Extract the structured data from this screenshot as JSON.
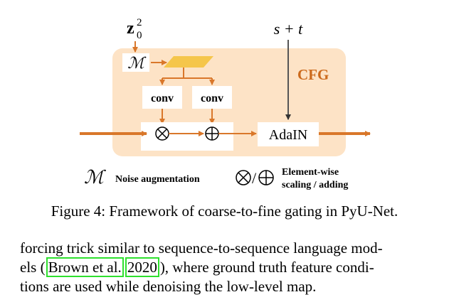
{
  "figure": {
    "input_label": "z",
    "input_sup": "2",
    "input_sub": "0",
    "top_right_label": "s + t",
    "noise_symbol": "ℳ",
    "conv_left": "conv",
    "conv_right": "conv",
    "cfg_label": "CFG",
    "adain_label": "AdaIN",
    "legend_noise": "Noise augmentation",
    "legend_ops_line1": "Element-wise",
    "legend_ops_line2": "scaling / adding",
    "legend_slash": "/",
    "colors": {
      "panel_bg": "#fde3c6",
      "arrow": "#d9772a",
      "trapezoid": "#f5c64b",
      "cfg_text": "#cc6a1c"
    }
  },
  "caption": "Figure 4: Framework of coarse-to-fine gating in PyU-Net.",
  "paragraph": {
    "line1": "forcing trick similar to sequence-to-sequence language mod-",
    "line2_pre": "els (",
    "citation_author": "Brown et al.",
    "citation_year": "2020",
    "line2_post": "), where ground truth feature condi-",
    "line3": "tions are used while denoising the low-level map."
  }
}
